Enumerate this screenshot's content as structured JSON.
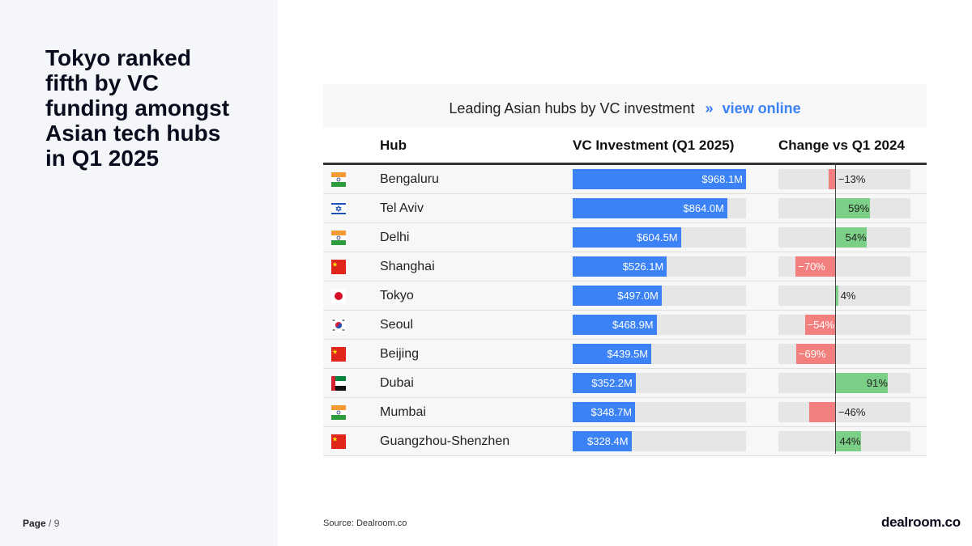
{
  "headline": "Tokyo ranked fifth by VC funding amongst Asian tech hubs in Q1 2025",
  "footer": {
    "page_label": "Page",
    "page_sep": "/",
    "page_number": "9",
    "source": "Source:  Dealroom.co",
    "logo": "dealroom.co"
  },
  "chart": {
    "title": "Leading Asian hubs by VC investment",
    "chevron": "»",
    "link": "view online"
  },
  "columns": {
    "hub": "Hub",
    "investment": "VC Investment (Q1 2025)",
    "change": "Change vs Q1 2024"
  },
  "colors": {
    "investment_bar": "#3b82f6",
    "positive": "#7ccf86",
    "negative": "#f47f7f",
    "track": "#e6e6e6"
  },
  "chart_data": {
    "type": "table",
    "title": "Leading Asian hubs by VC investment",
    "columns": [
      "Hub",
      "VC Investment (Q1 2025)",
      "Change vs Q1 2024"
    ],
    "investment_max": 968.1,
    "change_range": [
      -100,
      130
    ],
    "rows": [
      {
        "hub": "Bengaluru",
        "flag": "india-flag-icon",
        "investment": 968.1,
        "investment_label": "$968.1M",
        "change": -13,
        "change_label": "−13%"
      },
      {
        "hub": "Tel Aviv",
        "flag": "israel-flag-icon",
        "investment": 864.0,
        "investment_label": "$864.0M",
        "change": 59,
        "change_label": "59%"
      },
      {
        "hub": "Delhi",
        "flag": "india-flag-icon",
        "investment": 604.5,
        "investment_label": "$604.5M",
        "change": 54,
        "change_label": "54%"
      },
      {
        "hub": "Shanghai",
        "flag": "china-flag-icon",
        "investment": 526.1,
        "investment_label": "$526.1M",
        "change": -70,
        "change_label": "−70%"
      },
      {
        "hub": "Tokyo",
        "flag": "japan-flag-icon",
        "investment": 497.0,
        "investment_label": "$497.0M",
        "change": 4,
        "change_label": "4%"
      },
      {
        "hub": "Seoul",
        "flag": "south-korea-flag-icon",
        "investment": 468.9,
        "investment_label": "$468.9M",
        "change": -54,
        "change_label": "−54%"
      },
      {
        "hub": "Beijing",
        "flag": "china-flag-icon",
        "investment": 439.5,
        "investment_label": "$439.5M",
        "change": -69,
        "change_label": "−69%"
      },
      {
        "hub": "Dubai",
        "flag": "uae-flag-icon",
        "investment": 352.2,
        "investment_label": "$352.2M",
        "change": 91,
        "change_label": "91%"
      },
      {
        "hub": "Mumbai",
        "flag": "india-flag-icon",
        "investment": 348.7,
        "investment_label": "$348.7M",
        "change": -46,
        "change_label": "−46%"
      },
      {
        "hub": "Guangzhou-Shenzhen",
        "flag": "china-flag-icon",
        "investment": 328.4,
        "investment_label": "$328.4M",
        "change": 44,
        "change_label": "44%"
      }
    ]
  }
}
